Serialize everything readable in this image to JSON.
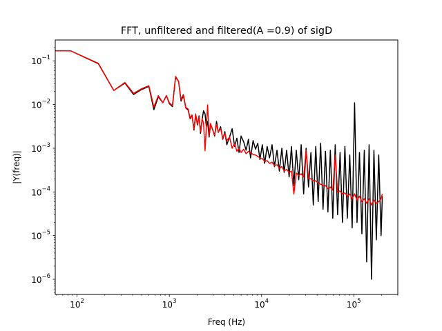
{
  "chart_data": {
    "type": "line",
    "title": "FFT, unfiltered and filtered(A =0.9) of sigD",
    "xlabel": "Freq (Hz)",
    "ylabel": "|Y(freq)|",
    "xscale": "log",
    "yscale": "log",
    "xlim": [
      58,
      300000
    ],
    "ylim": [
      4.5e-07,
      0.3
    ],
    "grid": false,
    "legend": "none",
    "x_ticks": [
      {
        "value": 100,
        "base": "10",
        "exp": "2"
      },
      {
        "value": 1000,
        "base": "10",
        "exp": "3"
      },
      {
        "value": 10000,
        "base": "10",
        "exp": "4"
      },
      {
        "value": 100000,
        "base": "10",
        "exp": "5"
      }
    ],
    "y_ticks": [
      {
        "value": 1e-06,
        "base": "10",
        "exp": "−6"
      },
      {
        "value": 1e-05,
        "base": "10",
        "exp": "−5"
      },
      {
        "value": 0.0001,
        "base": "10",
        "exp": "−4"
      },
      {
        "value": 0.001,
        "base": "10",
        "exp": "−3"
      },
      {
        "value": 0.01,
        "base": "10",
        "exp": "−2"
      },
      {
        "value": 0.1,
        "base": "10",
        "exp": "−1"
      }
    ],
    "series": [
      {
        "color": "#000000",
        "x": [
          58,
          85,
          170,
          250,
          330,
          410,
          500,
          600,
          680,
          760,
          850,
          930,
          1000,
          1080,
          1170,
          1260,
          1340,
          1420,
          1510,
          1600,
          1680,
          1760,
          1850,
          1930,
          2020,
          2100,
          2180,
          2270,
          2350,
          2440,
          2520,
          2600,
          2700,
          2800,
          2950,
          3100,
          3250,
          3400,
          3600,
          3800,
          4000,
          4200,
          4500,
          4800,
          5100,
          5400,
          5700,
          6000,
          6400,
          6800,
          7200,
          7600,
          8100,
          8600,
          9100,
          9600,
          10200,
          10800,
          11500,
          12200,
          13000,
          13800,
          14700,
          15600,
          16600,
          17600,
          18700,
          19900,
          21100,
          22400,
          23800,
          25300,
          26900,
          28600,
          30400,
          32300,
          34300,
          36400,
          38700,
          41100,
          43700,
          46400,
          49300,
          52400,
          55700,
          59200,
          62900,
          66800,
          71000,
          75400,
          80100,
          85100,
          90400,
          96000,
          102000,
          108400,
          115200,
          122400,
          130000,
          138000,
          146600,
          155700,
          165300,
          175500,
          186300,
          197500,
          204000
        ],
        "y": [
          0.17,
          0.17,
          0.086,
          0.021,
          0.031,
          0.017,
          0.022,
          0.026,
          0.0076,
          0.015,
          0.011,
          0.016,
          0.0105,
          0.009,
          0.042,
          0.034,
          0.012,
          0.016,
          0.0083,
          0.0075,
          0.0047,
          0.0057,
          0.0026,
          0.0058,
          0.0034,
          0.0055,
          0.0022,
          0.0046,
          0.0072,
          0.0061,
          0.0031,
          0.0041,
          0.0018,
          0.0035,
          0.0027,
          0.0019,
          0.0041,
          0.0023,
          0.0031,
          0.0016,
          0.0024,
          0.0012,
          0.0018,
          0.0028,
          0.0011,
          0.0017,
          0.0008,
          0.0019,
          0.0014,
          0.0009,
          0.0016,
          0.0006,
          0.0015,
          0.00095,
          0.0013,
          0.00055,
          0.0012,
          0.00045,
          0.0011,
          0.0006,
          0.0012,
          0.00038,
          0.0009,
          0.0003,
          0.001,
          0.00028,
          0.0009,
          0.00022,
          0.0011,
          0.00014,
          0.0009,
          0.00019,
          0.0012,
          9e-05,
          0.001,
          0.00013,
          0.0008,
          5e-05,
          0.0011,
          6e-05,
          0.0013,
          4e-05,
          0.00085,
          3.5e-05,
          0.0009,
          2.5e-05,
          0.0012,
          3e-05,
          0.0008,
          2e-05,
          0.0011,
          2.5e-05,
          0.0007,
          1.5e-05,
          0.011,
          2e-05,
          0.0008,
          1.1e-05,
          0.0009,
          2.5e-06,
          0.0012,
          1e-06,
          0.0009,
          8e-06,
          0.0007,
          1e-05,
          8e-05
        ]
      },
      {
        "color": "#ff0000",
        "x": [
          58,
          85,
          170,
          250,
          330,
          410,
          500,
          600,
          680,
          760,
          850,
          930,
          1000,
          1080,
          1170,
          1260,
          1340,
          1420,
          1510,
          1600,
          1680,
          1760,
          1850,
          1930,
          2020,
          2100,
          2180,
          2270,
          2350,
          2440,
          2520,
          2600,
          2700,
          2800,
          2950,
          3100,
          3250,
          3400,
          3600,
          3800,
          4000,
          4200,
          4500,
          4800,
          5100,
          5400,
          5700,
          6000,
          6400,
          6800,
          7200,
          7600,
          8100,
          8600,
          9100,
          9600,
          10200,
          10800,
          11500,
          12200,
          13000,
          13800,
          14700,
          15600,
          16600,
          17600,
          18700,
          19900,
          21100,
          22400,
          23800,
          25300,
          26900,
          28600,
          30400,
          32300,
          34300,
          36400,
          38700,
          41100,
          43700,
          46400,
          49300,
          52400,
          55700,
          59200,
          62900,
          66800,
          71000,
          75400,
          80100,
          85100,
          90400,
          96000,
          102000,
          108400,
          115200,
          122400,
          130000,
          138000,
          146600,
          155700,
          165300,
          175500,
          186300,
          197500,
          204000
        ],
        "y": [
          0.17,
          0.17,
          0.088,
          0.021,
          0.032,
          0.018,
          0.023,
          0.027,
          0.0088,
          0.016,
          0.011,
          0.016,
          0.011,
          0.0095,
          0.044,
          0.034,
          0.013,
          0.017,
          0.0085,
          0.0079,
          0.0049,
          0.0058,
          0.0028,
          0.0061,
          0.0035,
          0.0053,
          0.0024,
          0.0047,
          0.0038,
          0.00088,
          0.0031,
          0.0098,
          0.002,
          0.0037,
          0.0026,
          0.002,
          0.0035,
          0.0024,
          0.0028,
          0.0017,
          0.0022,
          0.0015,
          0.0018,
          0.001,
          0.0013,
          0.00085,
          0.001,
          0.0008,
          0.00095,
          0.00075,
          0.00085,
          0.0008,
          0.00072,
          0.0007,
          0.00065,
          0.0006,
          0.00058,
          0.0005,
          0.00052,
          0.00045,
          0.00048,
          0.0004,
          0.00042,
          0.00035,
          0.00038,
          0.0003,
          0.00033,
          0.00028,
          0.0003,
          9e-05,
          0.00027,
          0.00024,
          0.00026,
          0.00022,
          0.0009,
          0.0002,
          0.0002,
          0.00018,
          0.00018,
          0.00016,
          0.00015,
          0.00014,
          0.00014,
          0.00012,
          0.00013,
          0.00011,
          0.0007,
          0.0001,
          0.000105,
          9e-05,
          9.5e-05,
          8e-05,
          9e-05,
          7e-05,
          9e-05,
          6.5e-05,
          8e-05,
          6e-05,
          7e-05,
          5.5e-05,
          7e-05,
          5e-05,
          6.5e-05,
          5.5e-05,
          6e-05,
          7e-05,
          9e-05
        ]
      }
    ]
  }
}
